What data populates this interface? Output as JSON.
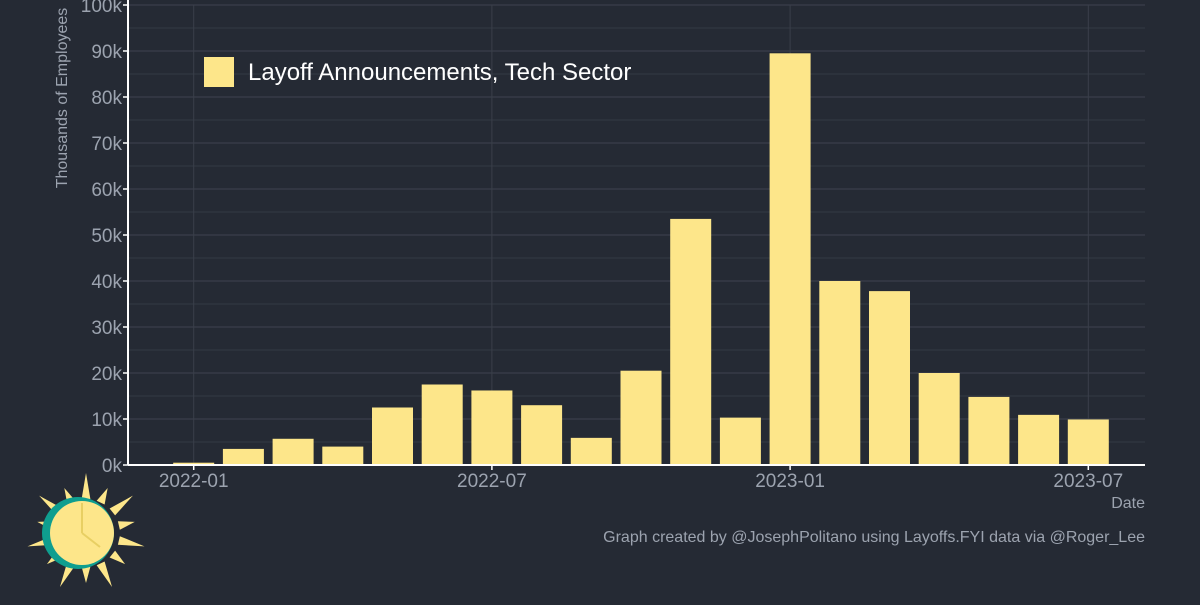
{
  "chart_data": {
    "type": "bar",
    "title": "",
    "legend": {
      "entries": [
        "Layoff Announcements, Tech Sector"
      ],
      "placement": "top-left"
    },
    "xlabel": "Date",
    "ylabel": "Thousands of Employees",
    "x_tick_labels": [
      "2022-01",
      "2022-07",
      "2023-01",
      "2023-07"
    ],
    "y_tick_labels": [
      "0k",
      "10k",
      "20k",
      "30k",
      "40k",
      "50k",
      "60k",
      "70k",
      "80k",
      "90k",
      "100k"
    ],
    "ylim": [
      0,
      100000
    ],
    "grid": true,
    "categories": [
      "2021-12",
      "2022-01",
      "2022-02",
      "2022-03",
      "2022-04",
      "2022-05",
      "2022-06",
      "2022-07",
      "2022-08",
      "2022-09",
      "2022-10",
      "2022-11",
      "2022-12",
      "2023-01",
      "2023-02",
      "2023-03",
      "2023-04",
      "2023-05",
      "2023-06",
      "2023-07"
    ],
    "series": [
      {
        "name": "Layoff Announcements, Tech Sector",
        "values": [
          0,
          500,
          3500,
          5700,
          4000,
          12500,
          17500,
          16200,
          13000,
          5900,
          20500,
          53500,
          10300,
          89500,
          40000,
          37800,
          20000,
          14800,
          10900,
          9900
        ]
      }
    ],
    "annotations": [
      "Graph created by @JosephPolitano using Layoffs.FYI data via @Roger_Lee"
    ]
  },
  "colors": {
    "background": "#252a34",
    "bar": "#fde68a",
    "grid": "#3a3f4a",
    "axis_text": "#9ca3af",
    "legend_text": "#ffffff",
    "logo_ring": "#0f9e8f",
    "logo_sun": "#fde68a"
  },
  "logo": {
    "icon": "sun-logo-icon"
  }
}
